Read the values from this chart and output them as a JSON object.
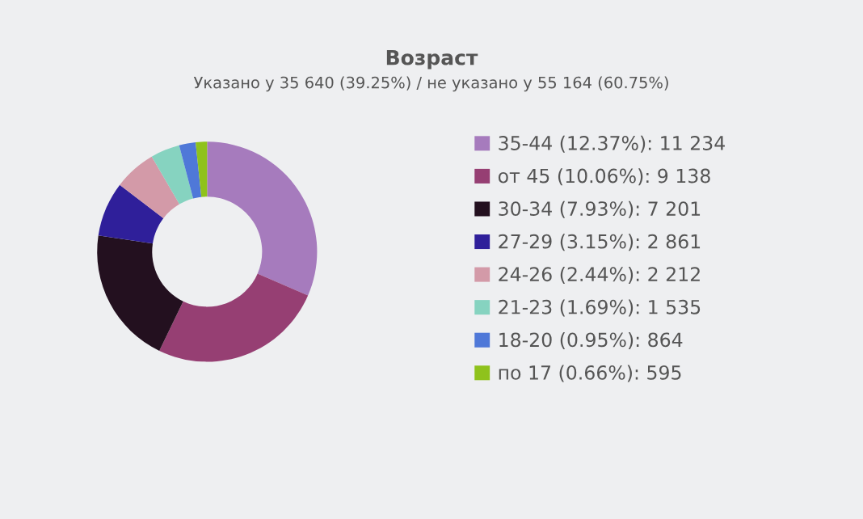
{
  "chart_data": {
    "type": "donut",
    "title": "Возраст",
    "subtitle": "Указано у 35 640 (39.25%) / не указано у 55 164 (60.75%)",
    "categories": [
      "35-44 (12.37%): 11 234",
      "от 45 (10.06%): 9 138",
      "30-34 (7.93%): 7 201",
      "27-29 (3.15%): 2 861",
      "24-26 (2.44%): 2 212",
      "21-23 (1.69%): 1 535",
      "18-20 (0.95%): 864",
      "по 17 (0.66%): 595"
    ],
    "values": [
      11234,
      9138,
      7201,
      2861,
      2212,
      1535,
      864,
      595
    ],
    "colors": [
      "#a67bbd",
      "#963f73",
      "#23101f",
      "#2f1f9a",
      "#d39aa8",
      "#86d3c0",
      "#4f78d8",
      "#8fc21c"
    ],
    "legend": "right"
  }
}
